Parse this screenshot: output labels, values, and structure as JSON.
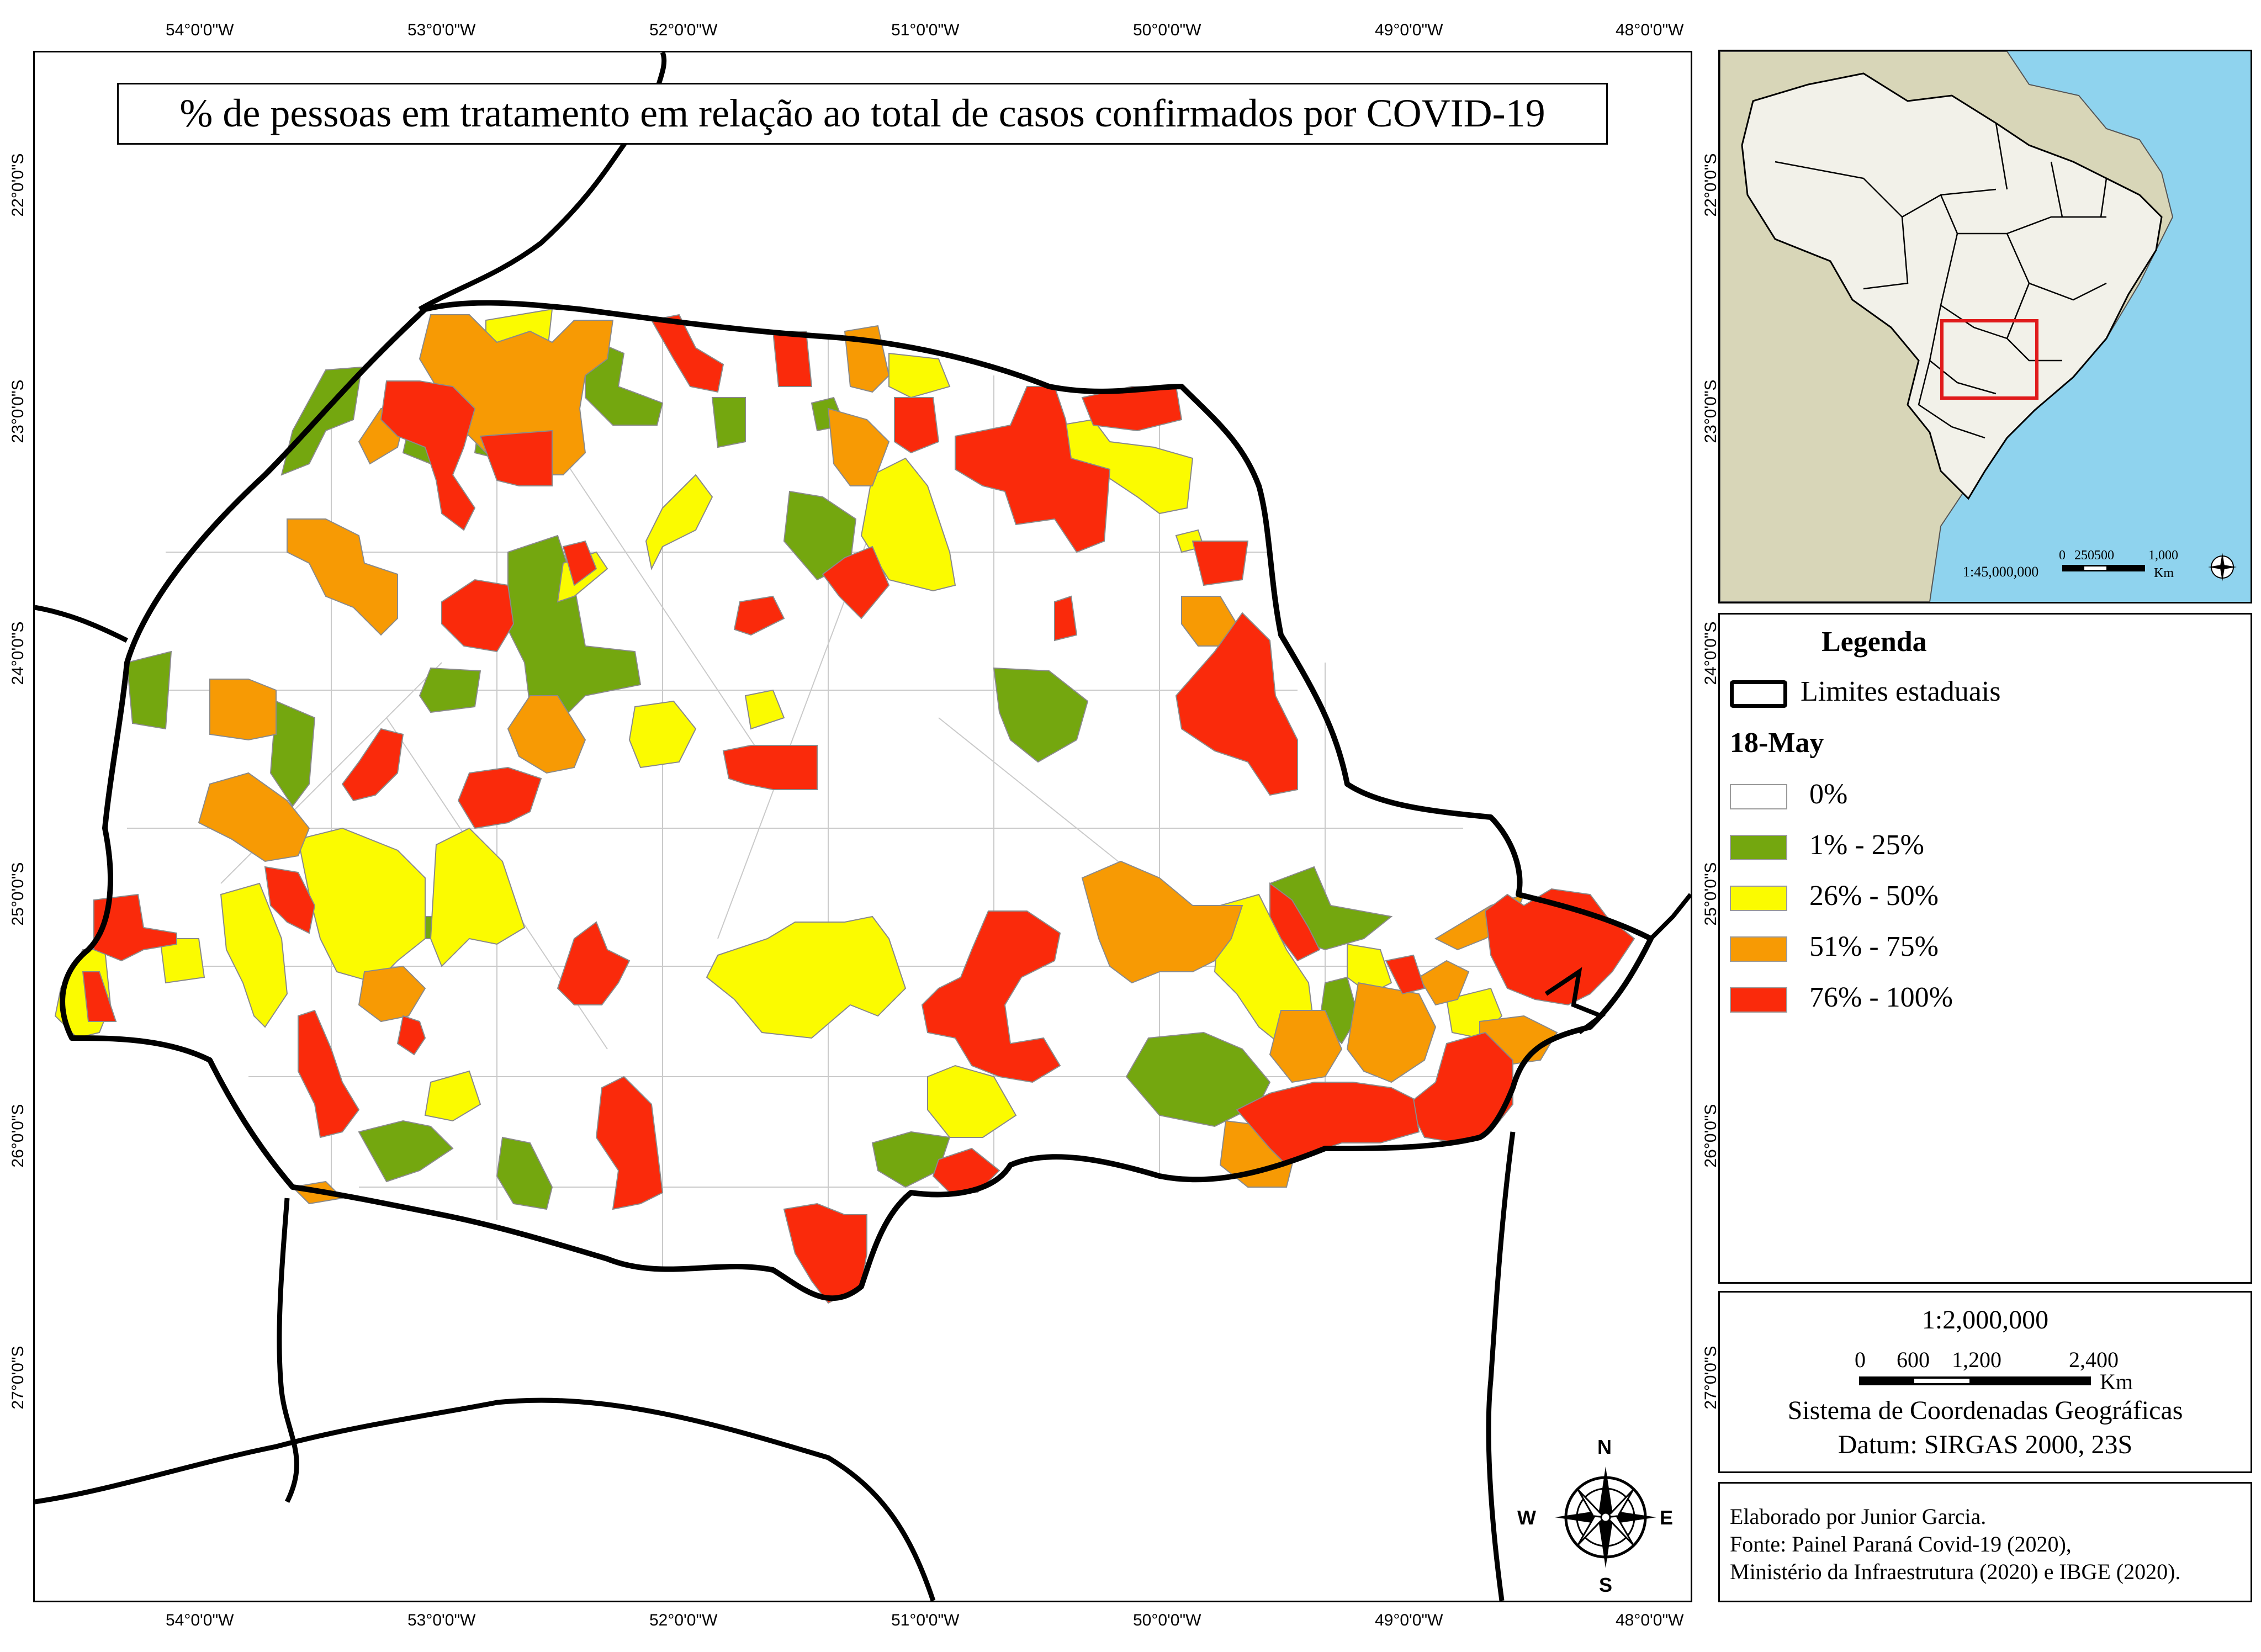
{
  "title": "% de pessoas em tratamento em relação ao total de casos confirmados por COVID-19",
  "lon_labels": [
    "54°0'0\"W",
    "53°0'0\"W",
    "52°0'0\"W",
    "51°0'0\"W",
    "50°0'0\"W",
    "49°0'0\"W",
    "48°0'0\"W"
  ],
  "lat_labels": [
    "22°0'0\"S",
    "23°0'0\"S",
    "24°0'0\"S",
    "25°0'0\"S",
    "26°0'0\"S",
    "27°0'0\"S"
  ],
  "legend": {
    "heading": "Legenda",
    "boundary_label": "Limites estaduais",
    "date_label": "18-May",
    "classes": [
      {
        "label": "0%",
        "color": "#ffffff"
      },
      {
        "label": "1% - 25%",
        "color": "#74a70f"
      },
      {
        "label": "26% - 50%",
        "color": "#fbfb00"
      },
      {
        "label": "51% - 75%",
        "color": "#f79a04"
      },
      {
        "label": "76% - 100%",
        "color": "#fa2a0b"
      }
    ]
  },
  "inset": {
    "scale_text": "1:45,000,000",
    "bar_labels": [
      "0",
      "250500",
      "1,000"
    ],
    "bar_unit": "Km",
    "ocean_color": "#8fd3ee",
    "land_color": "#d8d6b8",
    "brazil_color": "#f2f1e9",
    "highlight_color": "#e01b1b"
  },
  "scale": {
    "ratio": "1:2,000,000",
    "bar_labels": [
      "0",
      "600",
      "1,200",
      "2,400"
    ],
    "unit": "Km",
    "crs_line1": "Sistema de Coordenadas Geográficas",
    "crs_line2": "Datum: SIRGAS 2000, 23S"
  },
  "credits": [
    "Elaborado por Junior Garcia.",
    "Fonte: Painel Paraná Covid-19 (2020),",
    "Ministério da Infraestrutura (2020) e IBGE (2020)."
  ],
  "compass": {
    "n": "N",
    "s": "S",
    "e": "E",
    "w": "W"
  }
}
